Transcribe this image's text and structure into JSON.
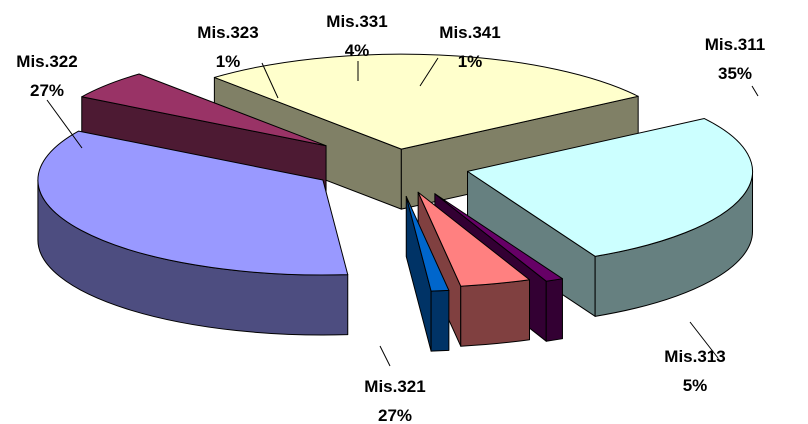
{
  "chart_data": {
    "type": "pie",
    "style": "3d-exploded",
    "slices": [
      {
        "name": "Mis.311",
        "percent_label": "35%",
        "value": 35,
        "top_color": "#9999FF",
        "side_color": "#4D4D80"
      },
      {
        "name": "Mis.313",
        "percent_label": "5%",
        "value": 5,
        "top_color": "#993366",
        "side_color": "#4D1A33"
      },
      {
        "name": "Mis.321",
        "percent_label": "27%",
        "value": 27,
        "top_color": "#FFFFCC",
        "side_color": "#808066"
      },
      {
        "name": "Mis.322",
        "percent_label": "27%",
        "value": 27,
        "top_color": "#CCFFFF",
        "side_color": "#668080"
      },
      {
        "name": "Mis.323",
        "percent_label": "1%",
        "value": 1,
        "top_color": "#660066",
        "side_color": "#330033"
      },
      {
        "name": "Mis.331",
        "percent_label": "4%",
        "value": 4,
        "top_color": "#FF8080",
        "side_color": "#804040"
      },
      {
        "name": "Mis.341",
        "percent_label": "1%",
        "value": 1,
        "top_color": "#0066CC",
        "side_color": "#003366"
      }
    ],
    "legend": "none"
  }
}
